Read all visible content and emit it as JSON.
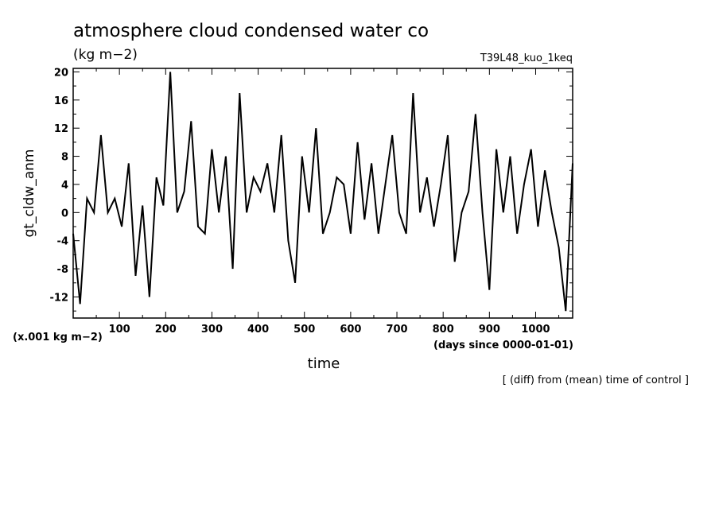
{
  "chart_data": {
    "type": "line",
    "title": "atmosphere cloud condensed water co",
    "units": "(kg m−2)",
    "run_label": "T39L48_kuo_1keq",
    "ylabel": "gt_cldw_anm",
    "xlabel": "time",
    "y_scale_note": "(x.001 kg m−2)",
    "x_units_note": "(days since 0000-01-01)",
    "footnote": "[ (diff) from (mean) time of control ]",
    "xlim": [
      0,
      1080
    ],
    "ylim": [
      -15,
      20.5
    ],
    "x_ticks": [
      100,
      200,
      300,
      400,
      500,
      600,
      700,
      800,
      900,
      1000
    ],
    "y_ticks": [
      20,
      16,
      12,
      8,
      4,
      0,
      -4,
      -8,
      -12
    ],
    "grid": false,
    "series": [
      {
        "color": "#000000",
        "x": [
          0,
          15,
          30,
          45,
          60,
          75,
          90,
          105,
          120,
          135,
          150,
          165,
          180,
          195,
          210,
          225,
          240,
          255,
          270,
          285,
          300,
          315,
          330,
          345,
          360,
          375,
          390,
          405,
          420,
          435,
          450,
          465,
          480,
          495,
          510,
          525,
          540,
          555,
          570,
          585,
          600,
          615,
          630,
          645,
          660,
          675,
          690,
          705,
          720,
          735,
          750,
          765,
          780,
          795,
          810,
          825,
          840,
          855,
          870,
          885,
          900,
          915,
          930,
          945,
          960,
          975,
          990,
          1005,
          1020,
          1035,
          1050,
          1065,
          1080
        ],
        "y": [
          -3,
          -13,
          2,
          0,
          11,
          0,
          2,
          -2,
          7,
          -9,
          1,
          -12,
          5,
          1,
          20,
          0,
          3,
          13,
          -2,
          -3,
          9,
          0,
          8,
          -8,
          17,
          0,
          5,
          3,
          7,
          0,
          11,
          -4,
          -10,
          8,
          0,
          12,
          -3,
          0,
          5,
          4,
          -3,
          10,
          -1,
          7,
          -3,
          4,
          11,
          0,
          -3,
          17,
          0,
          5,
          -2,
          4,
          11,
          -7,
          0,
          3,
          14,
          0,
          -11,
          9,
          0,
          8,
          -3,
          4,
          9,
          -2,
          6,
          0,
          -5,
          -14,
          7
        ]
      }
    ]
  }
}
